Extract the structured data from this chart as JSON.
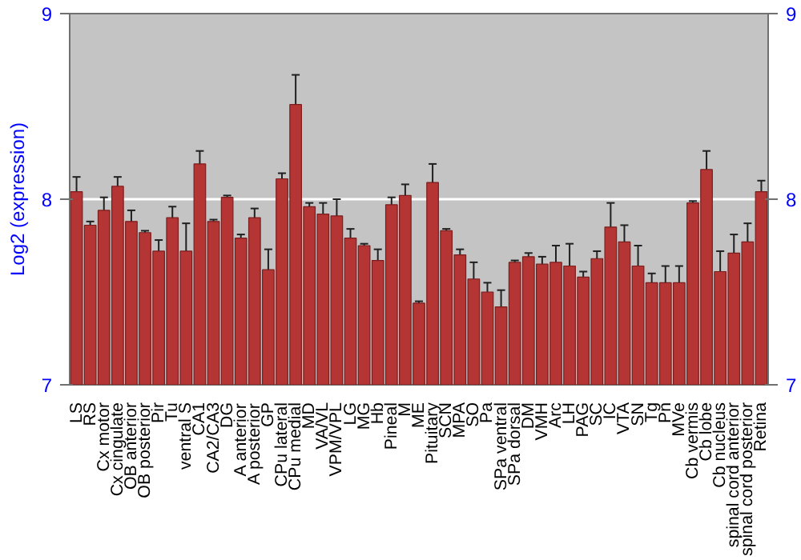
{
  "chart_data": {
    "type": "bar",
    "ylabel": "Log2 (expression)",
    "categories": [
      "LS",
      "RS",
      "Cx motor",
      "Cx cingulate",
      "OB anterior",
      "OB posterior",
      "Pir",
      "Tu",
      "ventral S",
      "CA1",
      "CA2/CA3",
      "DG",
      "A anterior",
      "A posterior",
      "GP",
      "CPu lateral",
      "CPu medial",
      "MD",
      "VA/VL",
      "VPM/VPL",
      "LG",
      "MG",
      "Hb",
      "Pineal",
      "M",
      "ME",
      "Pituitary",
      "SCN",
      "MPA",
      "SO",
      "Pa",
      "SPa ventral",
      "SPa dorsal",
      "DM",
      "VMH",
      "Arc",
      "LH",
      "PAG",
      "SC",
      "IC",
      "VTA",
      "SN",
      "Tg",
      "Pn",
      "MVe",
      "Cb vermis",
      "Cb lobe",
      "Cb nucleus",
      "spinal cord anterior",
      "spinal cord posterior",
      "Retina"
    ],
    "values": [
      8.04,
      7.86,
      7.94,
      8.07,
      7.88,
      7.82,
      7.72,
      7.9,
      7.72,
      8.19,
      7.88,
      8.01,
      7.79,
      7.9,
      7.62,
      8.11,
      8.51,
      7.96,
      7.92,
      7.91,
      7.79,
      7.75,
      7.67,
      7.97,
      8.02,
      7.44,
      8.09,
      7.83,
      7.7,
      7.57,
      7.5,
      7.42,
      7.66,
      7.69,
      7.65,
      7.66,
      7.64,
      7.58,
      7.68,
      7.85,
      7.77,
      7.64,
      7.55,
      7.55,
      7.55,
      7.98,
      8.16,
      7.61,
      7.71,
      7.77,
      8.04
    ],
    "errors": [
      0.08,
      0.02,
      0.07,
      0.05,
      0.06,
      0.01,
      0.06,
      0.06,
      0.15,
      0.07,
      0.01,
      0.01,
      0.02,
      0.05,
      0.11,
      0.03,
      0.16,
      0.02,
      0.06,
      0.09,
      0.05,
      0.01,
      0.06,
      0.04,
      0.06,
      0.01,
      0.1,
      0.01,
      0.03,
      0.09,
      0.05,
      0.09,
      0.01,
      0.02,
      0.04,
      0.09,
      0.12,
      0.03,
      0.04,
      0.13,
      0.09,
      0.11,
      0.05,
      0.09,
      0.09,
      0.01,
      0.1,
      0.11,
      0.1,
      0.1,
      0.06
    ],
    "color": "#b53535",
    "ylim": [
      7,
      9
    ],
    "yticks": [
      7,
      8,
      9
    ],
    "y2lim": [
      7,
      9
    ],
    "y2ticks": [
      7,
      8,
      9
    ],
    "grid": "y"
  }
}
